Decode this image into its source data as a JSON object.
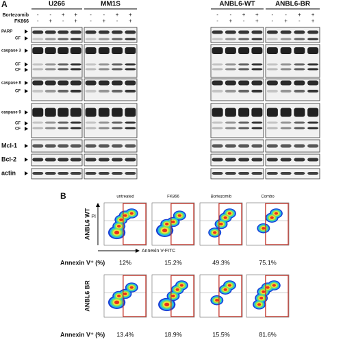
{
  "panel_a": {
    "label": "A",
    "treatments": [
      "Bortezomib",
      "FK866"
    ],
    "cell_lines": [
      {
        "name": "U266",
        "signs": [
          [
            "-",
            "-",
            "+",
            "+"
          ],
          [
            "-",
            "+",
            "-",
            "+"
          ]
        ]
      },
      {
        "name": "MM1S",
        "signs": [
          [
            "-",
            "-",
            "+",
            "+"
          ],
          [
            "-",
            "+",
            "-",
            "+"
          ]
        ]
      },
      {
        "name": "ANBL6-WT",
        "signs": [
          [
            "-",
            "-",
            "+",
            "+"
          ],
          [
            "-",
            "+",
            "-",
            "+"
          ]
        ]
      },
      {
        "name": "ANBL6-BR",
        "signs": [
          [
            "-",
            "-",
            "+",
            "+"
          ],
          [
            "-",
            "+",
            "-",
            "+"
          ]
        ]
      }
    ],
    "blots": [
      {
        "label": "PARP",
        "cleaved": [
          "CF"
        ]
      },
      {
        "label": "caspase 3",
        "cleaved": [
          "CF",
          "CF"
        ]
      },
      {
        "label": "caspase 8",
        "cleaved": [
          "CF"
        ]
      },
      {
        "label": "caspase 9",
        "cleaved": [
          "CF",
          "CF"
        ]
      },
      {
        "label": "Mcl-1",
        "cleaved": []
      },
      {
        "label": "Bcl-2",
        "cleaved": []
      },
      {
        "label": "actin",
        "cleaved": []
      }
    ]
  },
  "panel_b": {
    "label": "B",
    "conditions": [
      "untreated",
      "FK866",
      "Bortezomib",
      "Combo"
    ],
    "y_axis": "PI",
    "x_axis": "Annexin V-FITC",
    "rows": [
      {
        "name": "ANBL6 WT",
        "metric": "Annexin V⁺ (%)",
        "values": [
          "12%",
          "15.2%",
          "49.3%",
          "75.1%"
        ]
      },
      {
        "name": "ANBL6 BR",
        "metric": "Annexin V⁺ (%)",
        "values": [
          "13.4%",
          "18.9%",
          "15.5%",
          "81.6%"
        ]
      }
    ]
  }
}
